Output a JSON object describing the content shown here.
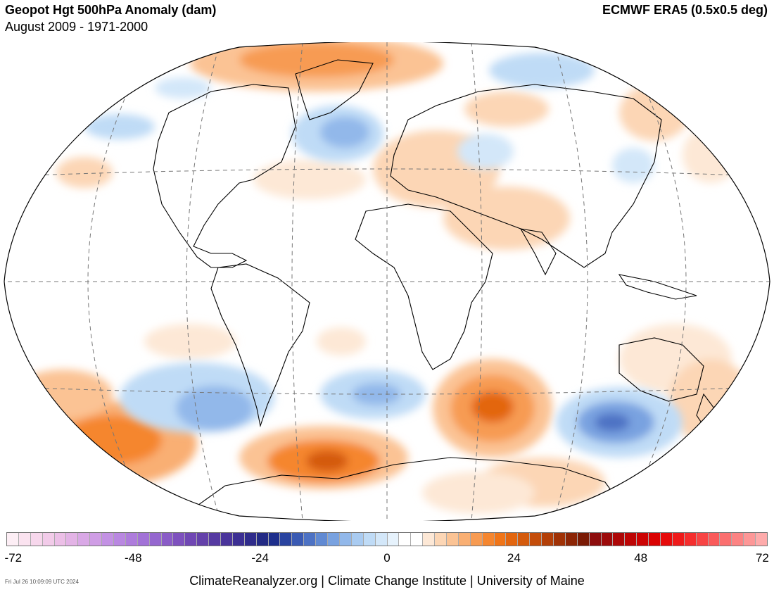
{
  "header": {
    "title": "Geopot Hgt 500hPa Anomaly (dam)",
    "subtitle": "August 2009 - 1971-2000",
    "source": "ECMWF ERA5 (0.5x0.5 deg)"
  },
  "colorbar": {
    "tick_labels": [
      "-72",
      "-48",
      "-24",
      "0",
      "24",
      "48",
      "72"
    ],
    "colors": [
      "#fdeef5",
      "#fbe3f0",
      "#f7d7ec",
      "#f2cbe9",
      "#ecbfe7",
      "#e3b3e6",
      "#d9a8e6",
      "#cf9de5",
      "#c391e4",
      "#b987e1",
      "#ae7cdc",
      "#a272d7",
      "#9567cf",
      "#8a5cc7",
      "#7e51be",
      "#7047b4",
      "#6441aa",
      "#563aa2",
      "#4a349b",
      "#3c2f93",
      "#2f2b8b",
      "#232a85",
      "#1d2e8c",
      "#2a44a0",
      "#3a5ab3",
      "#4d72c4",
      "#618ad3",
      "#79a2e0",
      "#92b8ea",
      "#a9cbf1",
      "#bfdbf6",
      "#d3e7f9",
      "#e6f2fc",
      "#ffffff",
      "#ffffff",
      "#fde8d6",
      "#fcd6b5",
      "#fbc394",
      "#f9af73",
      "#f79b52",
      "#f5862f",
      "#f07518",
      "#e3660f",
      "#d45a0c",
      "#c44d0a",
      "#b33f08",
      "#a03206",
      "#8c2505",
      "#7a1a04",
      "#8d0d0d",
      "#9c0a0a",
      "#ad0707",
      "#bd0505",
      "#cc0303",
      "#da0202",
      "#e60a0a",
      "#ef1a1a",
      "#f52e2e",
      "#f84444",
      "#fa5a5a",
      "#fb6f6f",
      "#fc8383",
      "#fd9797",
      "#feabab"
    ]
  },
  "footer": {
    "timestamp": "Fri Jul 26 10:09:09 UTC 2024",
    "credit": "ClimateReanalyzer.org | Climate Change Institute | University of Maine"
  }
}
